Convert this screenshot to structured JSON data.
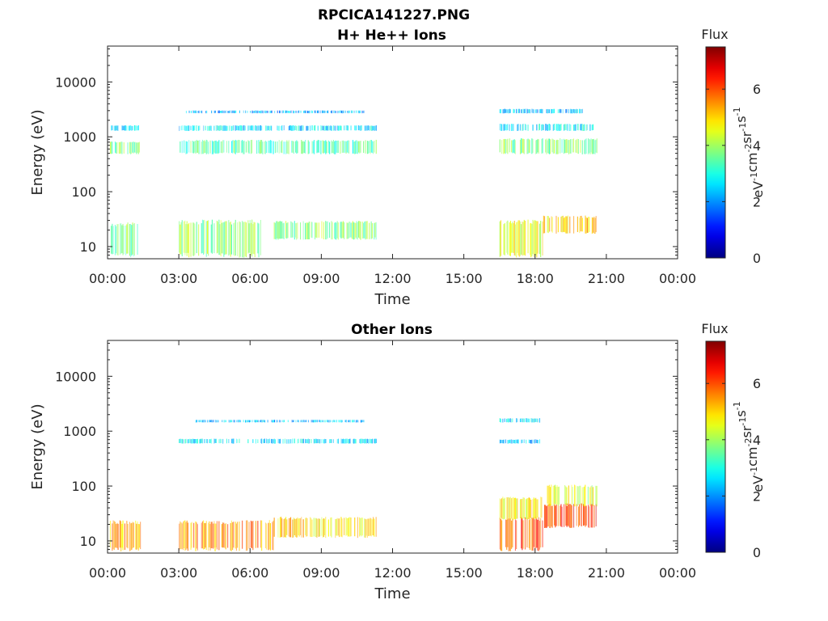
{
  "figure": {
    "title": "RPCICA141227.PNG"
  },
  "colorbar": {
    "title": "Flux",
    "unit_main": "eV",
    "unit_parts": [
      {
        "base": "eV",
        "exp": "-1"
      },
      {
        "base": "cm",
        "exp": "-2"
      },
      {
        "base": "sr",
        "exp": "-1"
      },
      {
        "base": "s",
        "exp": "-1"
      }
    ],
    "ticks": [
      "0",
      "2",
      "4",
      "6"
    ],
    "range": [
      0,
      7.5
    ],
    "colormap": "jet"
  },
  "chart_data": [
    {
      "type": "heatmap",
      "title": "H+ He++ Ions",
      "xlabel": "Time",
      "ylabel": "Energy (eV)",
      "x_ticks": [
        "00:00",
        "03:00",
        "06:00",
        "09:00",
        "12:00",
        "15:00",
        "18:00",
        "21:00",
        "00:00"
      ],
      "x_range_hours": [
        0,
        24
      ],
      "y_ticks": [
        "10",
        "100",
        "1000",
        "10000"
      ],
      "y_range": [
        6,
        45000
      ],
      "y_scale": "log",
      "grid": false,
      "bands": [
        {
          "t0": 0.1,
          "t1": 1.4,
          "e0": 500,
          "e1": 800,
          "flux": 3.6
        },
        {
          "t0": 0.1,
          "t1": 1.4,
          "e0": 1300,
          "e1": 1600,
          "flux": 2.6
        },
        {
          "t0": 0.1,
          "t1": 1.4,
          "e0": 7,
          "e1": 25,
          "flux": 3.8
        },
        {
          "t0": 3.0,
          "t1": 11.3,
          "e0": 500,
          "e1": 850,
          "flux": 3.4
        },
        {
          "t0": 3.0,
          "t1": 11.3,
          "e0": 1300,
          "e1": 1600,
          "flux": 2.6
        },
        {
          "t0": 3.3,
          "t1": 10.8,
          "e0": 2700,
          "e1": 3000,
          "flux": 2.2
        },
        {
          "t0": 3.0,
          "t1": 6.5,
          "e0": 7,
          "e1": 28,
          "flux": 3.9
        },
        {
          "t0": 7.0,
          "t1": 11.3,
          "e0": 14,
          "e1": 28,
          "flux": 3.8
        },
        {
          "t0": 16.5,
          "t1": 20.6,
          "e0": 500,
          "e1": 900,
          "flux": 3.7
        },
        {
          "t0": 16.5,
          "t1": 20.6,
          "e0": 1300,
          "e1": 1700,
          "flux": 2.8
        },
        {
          "t0": 16.5,
          "t1": 20.0,
          "e0": 2700,
          "e1": 3200,
          "flux": 2.4
        },
        {
          "t0": 16.5,
          "t1": 18.3,
          "e0": 7,
          "e1": 28,
          "flux": 4.6
        },
        {
          "t0": 18.3,
          "t1": 20.6,
          "e0": 18,
          "e1": 35,
          "flux": 5.0
        }
      ]
    },
    {
      "type": "heatmap",
      "title": "Other Ions",
      "xlabel": "Time",
      "ylabel": "Energy (eV)",
      "x_ticks": [
        "00:00",
        "03:00",
        "06:00",
        "09:00",
        "12:00",
        "15:00",
        "18:00",
        "21:00",
        "00:00"
      ],
      "x_range_hours": [
        0,
        24
      ],
      "y_ticks": [
        "10",
        "100",
        "1000",
        "10000"
      ],
      "y_range": [
        6,
        45000
      ],
      "y_scale": "log",
      "grid": false,
      "bands": [
        {
          "t0": 0.1,
          "t1": 1.4,
          "e0": 7,
          "e1": 22,
          "flux": 5.3
        },
        {
          "t0": 3.0,
          "t1": 7.0,
          "e0": 7,
          "e1": 22,
          "flux": 5.5
        },
        {
          "t0": 7.0,
          "t1": 11.3,
          "e0": 12,
          "e1": 26,
          "flux": 4.9
        },
        {
          "t0": 3.0,
          "t1": 11.3,
          "e0": 600,
          "e1": 720,
          "flux": 2.6
        },
        {
          "t0": 3.5,
          "t1": 10.8,
          "e0": 1450,
          "e1": 1600,
          "flux": 2.4
        },
        {
          "t0": 16.5,
          "t1": 18.3,
          "e0": 7,
          "e1": 25,
          "flux": 6.0
        },
        {
          "t0": 16.5,
          "t1": 18.3,
          "e0": 25,
          "e1": 60,
          "flux": 4.8
        },
        {
          "t0": 18.3,
          "t1": 20.6,
          "e0": 18,
          "e1": 45,
          "flux": 6.2
        },
        {
          "t0": 18.5,
          "t1": 20.6,
          "e0": 45,
          "e1": 100,
          "flux": 4.4
        },
        {
          "t0": 16.5,
          "t1": 18.2,
          "e0": 1450,
          "e1": 1700,
          "flux": 2.6
        },
        {
          "t0": 16.5,
          "t1": 18.2,
          "e0": 600,
          "e1": 700,
          "flux": 2.3
        }
      ]
    }
  ]
}
